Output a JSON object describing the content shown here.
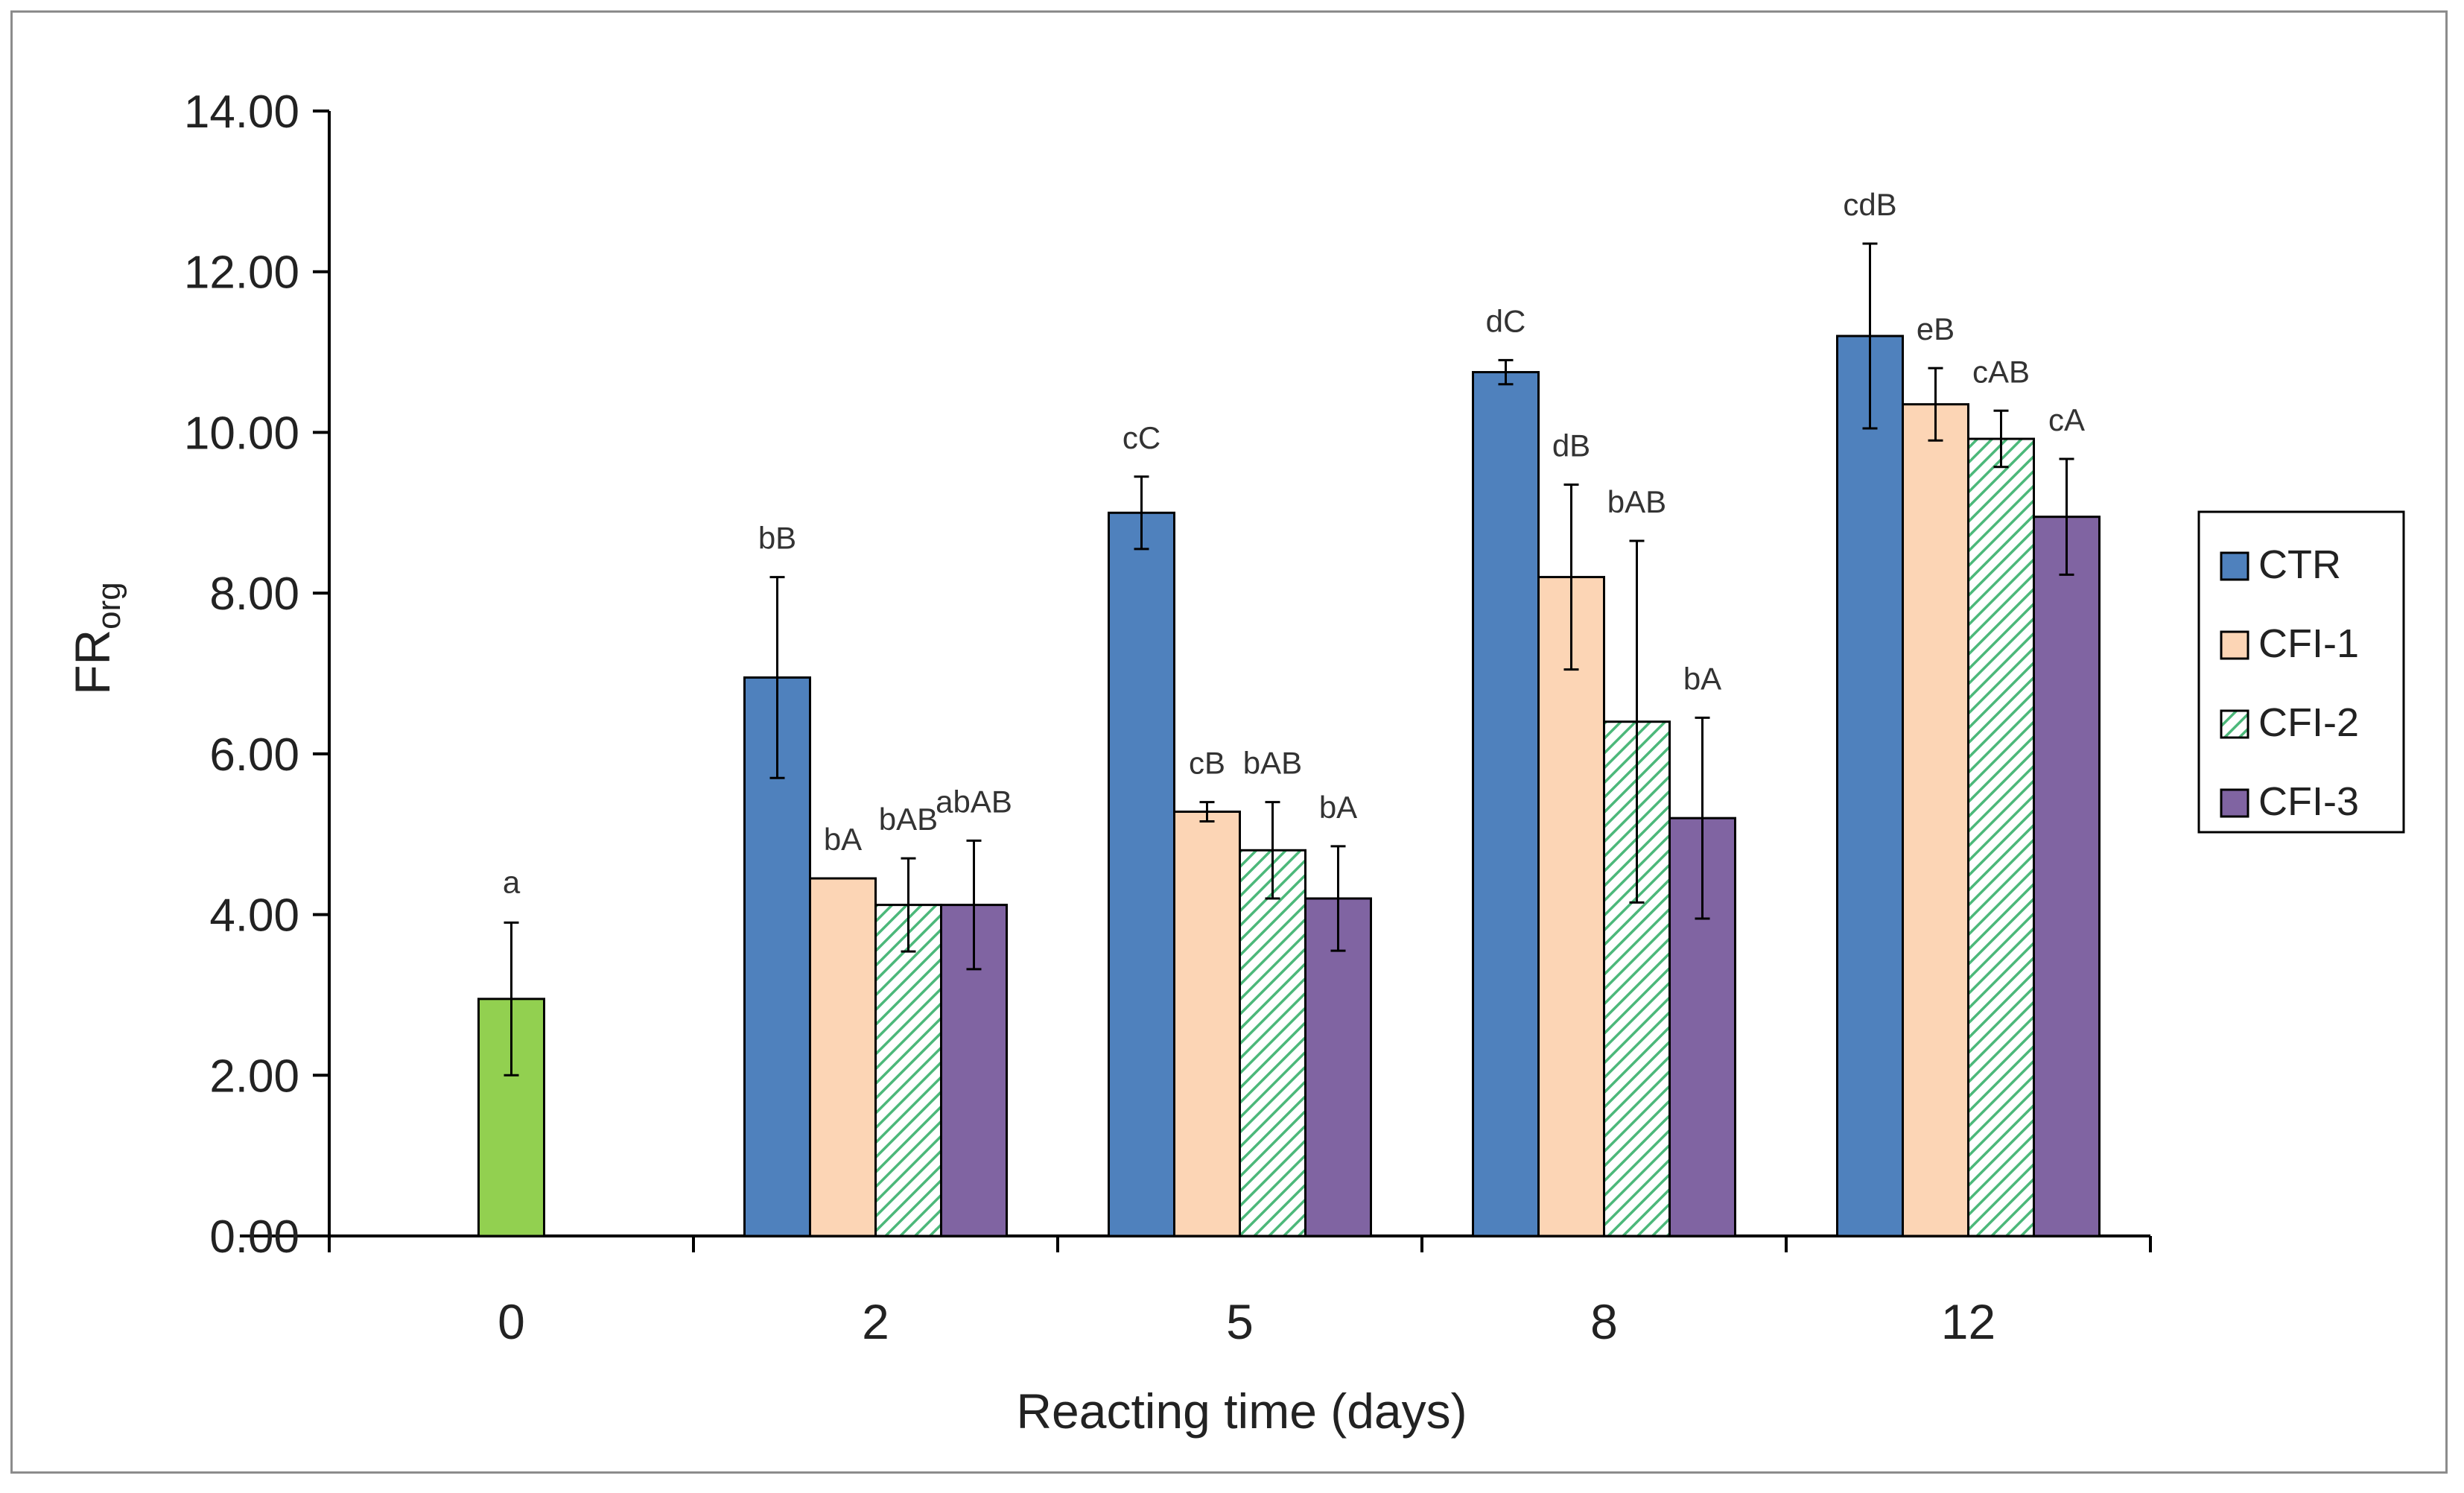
{
  "chart_data": {
    "type": "bar",
    "title": "",
    "xlabel": "Reacting time (days)",
    "ylabel": "FR",
    "ylabel_subscript": "org",
    "ylim": [
      0,
      14
    ],
    "yticks": [
      "0.00",
      "2.00",
      "4.00",
      "6.00",
      "8.00",
      "10.00",
      "12.00",
      "14.00"
    ],
    "categories": [
      "0",
      "2",
      "5",
      "8",
      "12"
    ],
    "initial": {
      "name": "Day 0",
      "category": "0",
      "value": 2.95,
      "error": 0.95,
      "label": "a",
      "color": "#92D050"
    },
    "series": [
      {
        "name": "CTR",
        "color": "#4F81BD",
        "pattern": "solid",
        "values": [
          null,
          6.95,
          9.0,
          10.75,
          11.2
        ],
        "errors": [
          null,
          1.25,
          0.45,
          0.15,
          1.15
        ],
        "labels": [
          "",
          "bB",
          "cC",
          "dC",
          "cdB"
        ]
      },
      {
        "name": "CFI-1",
        "color": "#FCD5B5",
        "pattern": "solid",
        "values": [
          null,
          4.45,
          5.28,
          8.2,
          10.35
        ],
        "errors": [
          null,
          0.0,
          0.12,
          1.15,
          0.45
        ],
        "labels": [
          "",
          "bA",
          "cB",
          "dB",
          "eB"
        ]
      },
      {
        "name": "CFI-2",
        "color": "#4CB87A",
        "pattern": "hatch",
        "values": [
          null,
          4.12,
          4.8,
          6.4,
          9.92
        ],
        "errors": [
          null,
          0.58,
          0.6,
          2.25,
          0.35
        ],
        "labels": [
          "",
          "bAB",
          "bAB",
          "bAB",
          "cAB"
        ]
      },
      {
        "name": "CFI-3",
        "color": "#8064A2",
        "pattern": "solid",
        "values": [
          null,
          4.12,
          4.2,
          5.2,
          8.95
        ],
        "errors": [
          null,
          0.8,
          0.65,
          1.25,
          0.72
        ],
        "labels": [
          "",
          "abAB",
          "bA",
          "bA",
          "cA"
        ]
      }
    ],
    "legend": {
      "position": "right",
      "entries": [
        "CTR",
        "CFI-1",
        "CFI-2",
        "CFI-3"
      ]
    },
    "grid": false
  }
}
